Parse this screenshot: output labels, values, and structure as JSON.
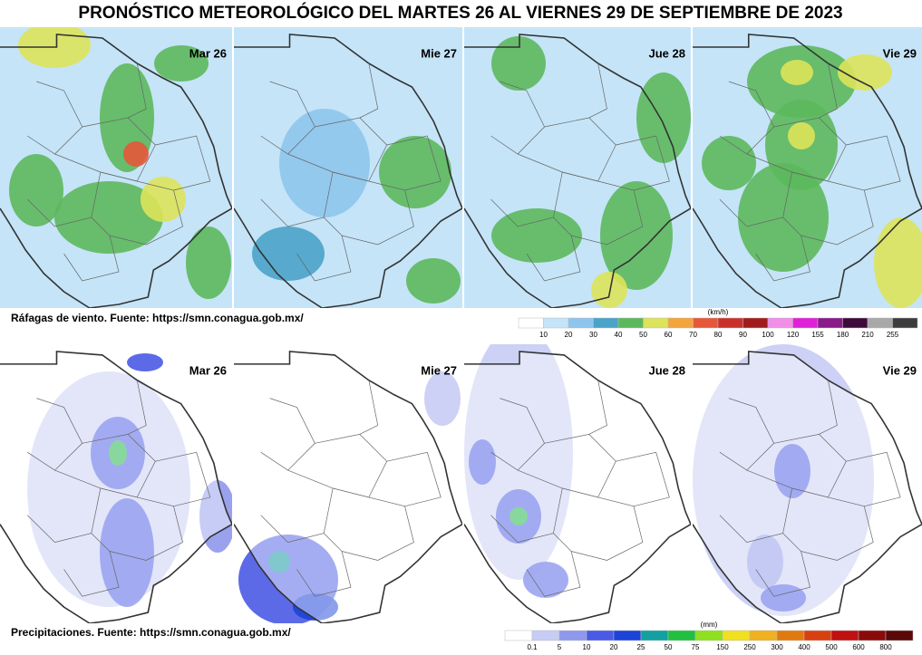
{
  "header": {
    "title": "PRONÓSTICO METEOROLÓGICO DEL MARTES 26 AL VIERNES 29 DE SEPTIEMBRE DE 2023"
  },
  "wind": {
    "panels": [
      "Mar 26",
      "Mie 27",
      "Jue 28",
      "Vie 29"
    ],
    "caption": "Ráfagas de viento.  Fuente: https://smn.conagua.gob.mx/",
    "unit": "(km/h)",
    "scale": {
      "ticks": [
        10,
        20,
        30,
        40,
        50,
        60,
        70,
        80,
        90,
        100,
        120,
        155,
        180,
        210,
        255
      ],
      "colors": [
        "#ffffff",
        "#c5e4f8",
        "#8ec5ec",
        "#4aa3c8",
        "#5cb85c",
        "#dde35a",
        "#f3a53c",
        "#e6573a",
        "#c9302c",
        "#a11d1d",
        "#f08ee8",
        "#e020d8",
        "#8a1a88",
        "#3e0a3a",
        "#a8a8a8",
        "#3c3c3c"
      ]
    }
  },
  "precip": {
    "panels": [
      "Mar 26",
      "Mie 27",
      "Jue 28",
      "Vie 29"
    ],
    "caption": "Precipitaciones.  Fuente: https://smn.conagua.gob.mx/",
    "unit": "(mm)",
    "scale": {
      "ticks": [
        0.1,
        5,
        10,
        20,
        25,
        50,
        75,
        150,
        250,
        300,
        400,
        500,
        600,
        800
      ],
      "colors": [
        "#ffffff",
        "#c6ccf4",
        "#8f98ec",
        "#4a5ae4",
        "#1c44d8",
        "#12a0a0",
        "#20c040",
        "#8ee020",
        "#f0e020",
        "#f0b020",
        "#e07a10",
        "#d84010",
        "#c01010",
        "#8a0a0a",
        "#5a0808"
      ]
    }
  }
}
